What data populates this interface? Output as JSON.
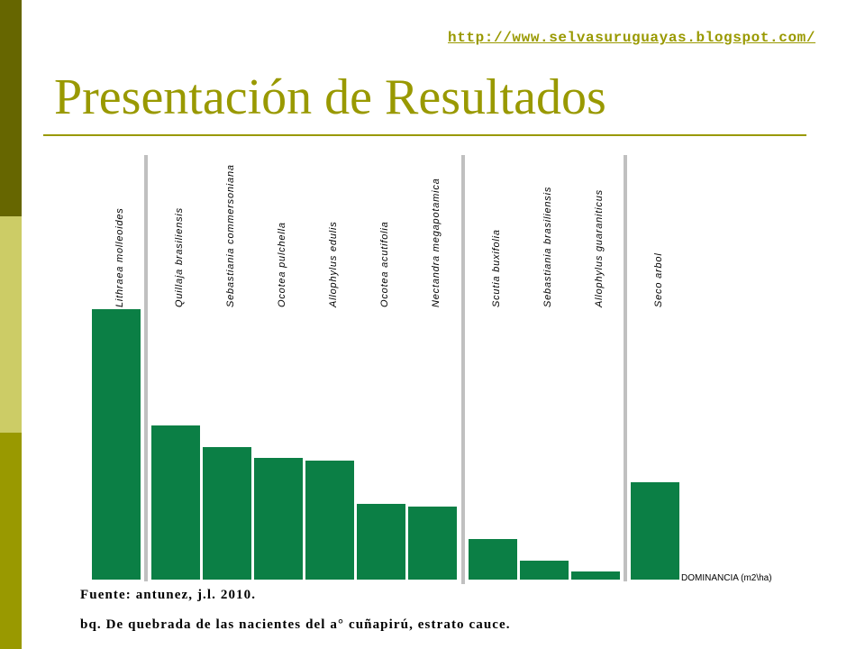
{
  "slide": {
    "link": "http://www.selvasuruguayas.blogspot.com/",
    "title": "Presentación de Resultados",
    "source": "Fuente: antunez, j.l. 2010.",
    "caption": "bq. De quebrada de las nacientes del a° cuñapirú, estrato cauce."
  },
  "colors": {
    "accent": "#999900",
    "strip_dark": "#666600",
    "strip_light": "#cccc66",
    "bar": "#0b7f45",
    "separator": "#c0c0c0"
  },
  "chart_data": {
    "type": "bar",
    "categories": [
      "Lithraea molleoides",
      "Quillaja brasiliensis",
      "Sebastiania commersoniana",
      "Ocotea pulchella",
      "Allophylus edulis",
      "Ocotea acutifolia",
      "Nectandra megapotamica",
      "Scutia buxifolia",
      "Sebastiania brasiliensis",
      "Allophylus guaraniticus",
      "Seco arbol"
    ],
    "values": [
      1.0,
      0.57,
      0.49,
      0.45,
      0.44,
      0.28,
      0.27,
      0.15,
      0.07,
      0.03,
      0.36
    ],
    "ylabel": "DOMINANCIA (m2\\ha)",
    "ylim": [
      0,
      1
    ],
    "grid": false
  }
}
